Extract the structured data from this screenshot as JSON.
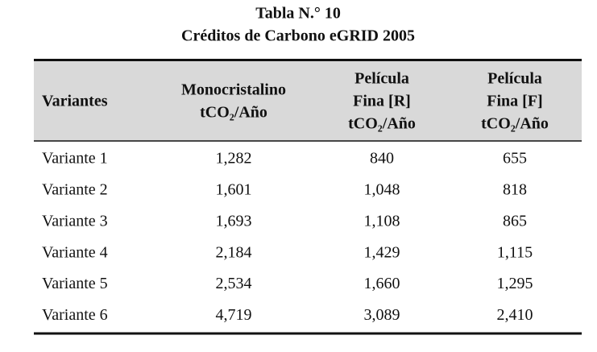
{
  "title": {
    "line1": "Tabla N.° 10",
    "line2": "Créditos de Carbono eGRID 2005"
  },
  "table": {
    "header": [
      [
        "Variantes"
      ],
      [
        "Monocristalino",
        "tCO₂/Año"
      ],
      [
        "Película",
        "Fina [R]",
        "tCO₂/Año"
      ],
      [
        "Película",
        "Fina [F]",
        "tCO₂/Año"
      ]
    ],
    "rows": [
      [
        "Variante 1",
        "1,282",
        "840",
        "655"
      ],
      [
        "Variante 2",
        "1,601",
        "1,048",
        "818"
      ],
      [
        "Variante 3",
        "1,693",
        "1,108",
        "865"
      ],
      [
        "Variante 4",
        "2,184",
        "1,429",
        "1,115"
      ],
      [
        "Variante 5",
        "2,534",
        "1,660",
        "1,295"
      ],
      [
        "Variante 6",
        "4,719",
        "3,089",
        "2,410"
      ]
    ]
  }
}
